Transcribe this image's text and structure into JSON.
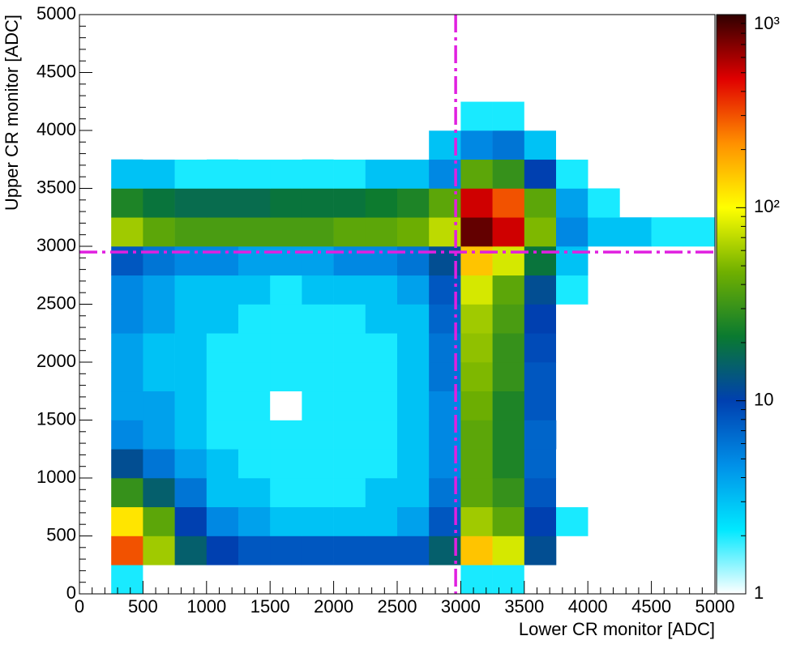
{
  "chart_data": {
    "type": "heatmap",
    "xlabel": "Lower CR monitor [ADC]",
    "ylabel": "Upper CR monitor [ADC]",
    "xbins": [
      0,
      250,
      500,
      750,
      1000,
      1250,
      1500,
      1750,
      2000,
      2250,
      2500,
      2750,
      3000,
      3250,
      3500,
      3750,
      4000,
      4250,
      4500,
      4750,
      5000
    ],
    "ybins": [
      0,
      250,
      500,
      750,
      1000,
      1250,
      1500,
      1750,
      2000,
      2250,
      2500,
      2750,
      3000,
      3250,
      3500,
      3750,
      4000,
      4250,
      4500,
      4750,
      5000
    ],
    "z": [
      [
        null,
        2,
        1,
        1,
        1,
        1,
        1,
        1,
        1,
        1,
        1,
        1,
        2,
        2,
        1,
        null,
        null,
        null,
        null,
        null
      ],
      [
        null,
        300,
        60,
        15,
        10,
        8,
        8,
        8,
        8,
        8,
        8,
        15,
        150,
        80,
        12,
        null,
        null,
        null,
        null,
        null
      ],
      [
        null,
        120,
        40,
        10,
        5,
        4,
        3,
        3,
        3,
        3,
        4,
        8,
        60,
        40,
        10,
        2,
        null,
        null,
        null,
        null
      ],
      [
        null,
        30,
        15,
        6,
        3,
        3,
        2,
        2,
        2,
        3,
        3,
        6,
        40,
        30,
        8,
        1,
        null,
        null,
        null,
        null
      ],
      [
        1,
        12,
        6,
        4,
        3,
        2,
        2,
        2,
        2,
        2,
        3,
        5,
        40,
        25,
        7,
        1,
        null,
        null,
        null,
        null
      ],
      [
        1,
        5,
        4,
        3,
        2,
        2,
        2,
        2,
        2,
        2,
        3,
        5,
        40,
        25,
        7,
        null,
        null,
        null,
        null,
        null
      ],
      [
        null,
        4,
        4,
        3,
        2,
        2,
        1,
        2,
        2,
        2,
        3,
        5,
        45,
        25,
        8,
        1,
        null,
        null,
        null,
        null
      ],
      [
        null,
        4,
        3,
        3,
        2,
        2,
        2,
        2,
        2,
        2,
        3,
        6,
        50,
        30,
        8,
        1,
        null,
        null,
        null,
        null
      ],
      [
        null,
        4,
        3,
        3,
        2,
        2,
        2,
        2,
        2,
        2,
        3,
        6,
        55,
        30,
        9,
        1,
        null,
        1,
        null,
        null
      ],
      [
        null,
        5,
        4,
        3,
        3,
        2,
        2,
        2,
        2,
        3,
        3,
        7,
        60,
        35,
        10,
        1,
        null,
        1,
        null,
        null
      ],
      [
        null,
        5,
        4,
        3,
        3,
        3,
        2,
        3,
        3,
        3,
        4,
        8,
        80,
        40,
        12,
        2,
        null,
        null,
        null,
        null
      ],
      [
        null,
        8,
        6,
        5,
        5,
        4,
        4,
        4,
        5,
        5,
        6,
        12,
        150,
        80,
        20,
        3,
        null,
        null,
        null,
        null
      ],
      [
        null,
        60,
        40,
        35,
        35,
        35,
        35,
        35,
        40,
        40,
        45,
        70,
        800,
        500,
        50,
        5,
        3,
        3,
        2,
        2
      ],
      [
        null,
        25,
        20,
        18,
        18,
        18,
        20,
        20,
        20,
        22,
        25,
        40,
        500,
        300,
        40,
        4,
        2,
        null,
        null,
        null
      ],
      [
        null,
        3,
        3,
        2,
        2,
        2,
        2,
        2,
        2,
        3,
        3,
        5,
        40,
        30,
        10,
        2,
        null,
        null,
        null,
        null
      ],
      [
        null,
        null,
        1,
        1,
        null,
        1,
        1,
        null,
        1,
        1,
        1,
        3,
        5,
        6,
        3,
        1,
        null,
        null,
        null,
        null
      ],
      [
        null,
        null,
        null,
        null,
        null,
        null,
        null,
        null,
        null,
        null,
        null,
        1,
        2,
        2,
        1,
        null,
        null,
        null,
        null,
        null
      ],
      [
        null,
        null,
        null,
        null,
        null,
        null,
        null,
        null,
        null,
        null,
        null,
        null,
        1,
        1,
        null,
        null,
        null,
        null,
        null,
        null
      ],
      [
        null,
        null,
        null,
        null,
        null,
        null,
        null,
        null,
        null,
        null,
        null,
        null,
        1,
        1,
        null,
        null,
        null,
        null,
        null,
        null
      ],
      [
        null,
        null,
        null,
        null,
        null,
        null,
        null,
        null,
        null,
        null,
        null,
        null,
        1,
        1,
        null,
        null,
        null,
        null,
        null,
        null
      ]
    ],
    "xlim": [
      0,
      5000
    ],
    "ylim": [
      0,
      5000
    ],
    "xticks": [
      0,
      500,
      1000,
      1500,
      2000,
      2500,
      3000,
      3500,
      4000,
      4500,
      5000
    ],
    "yticks": [
      0,
      500,
      1000,
      1500,
      2000,
      2500,
      3000,
      3500,
      4000,
      4500,
      5000
    ],
    "zlim": [
      1,
      1000
    ],
    "zlog": true,
    "zticks": [
      1,
      10,
      {
        "value": 100,
        "label": "10²"
      },
      {
        "value": 1000,
        "label": "10³"
      }
    ],
    "colormap": [
      "#ffffff",
      "#00e8ff",
      "#0090e8",
      "#0040b0",
      "#0a7a30",
      "#70b000",
      "#ffff00",
      "#ff9000",
      "#e00000",
      "#300000"
    ],
    "cut_lines": [
      {
        "axis": "x",
        "value": 2960
      },
      {
        "axis": "y",
        "value": 2950
      }
    ],
    "cut_color": "#e020e0"
  }
}
